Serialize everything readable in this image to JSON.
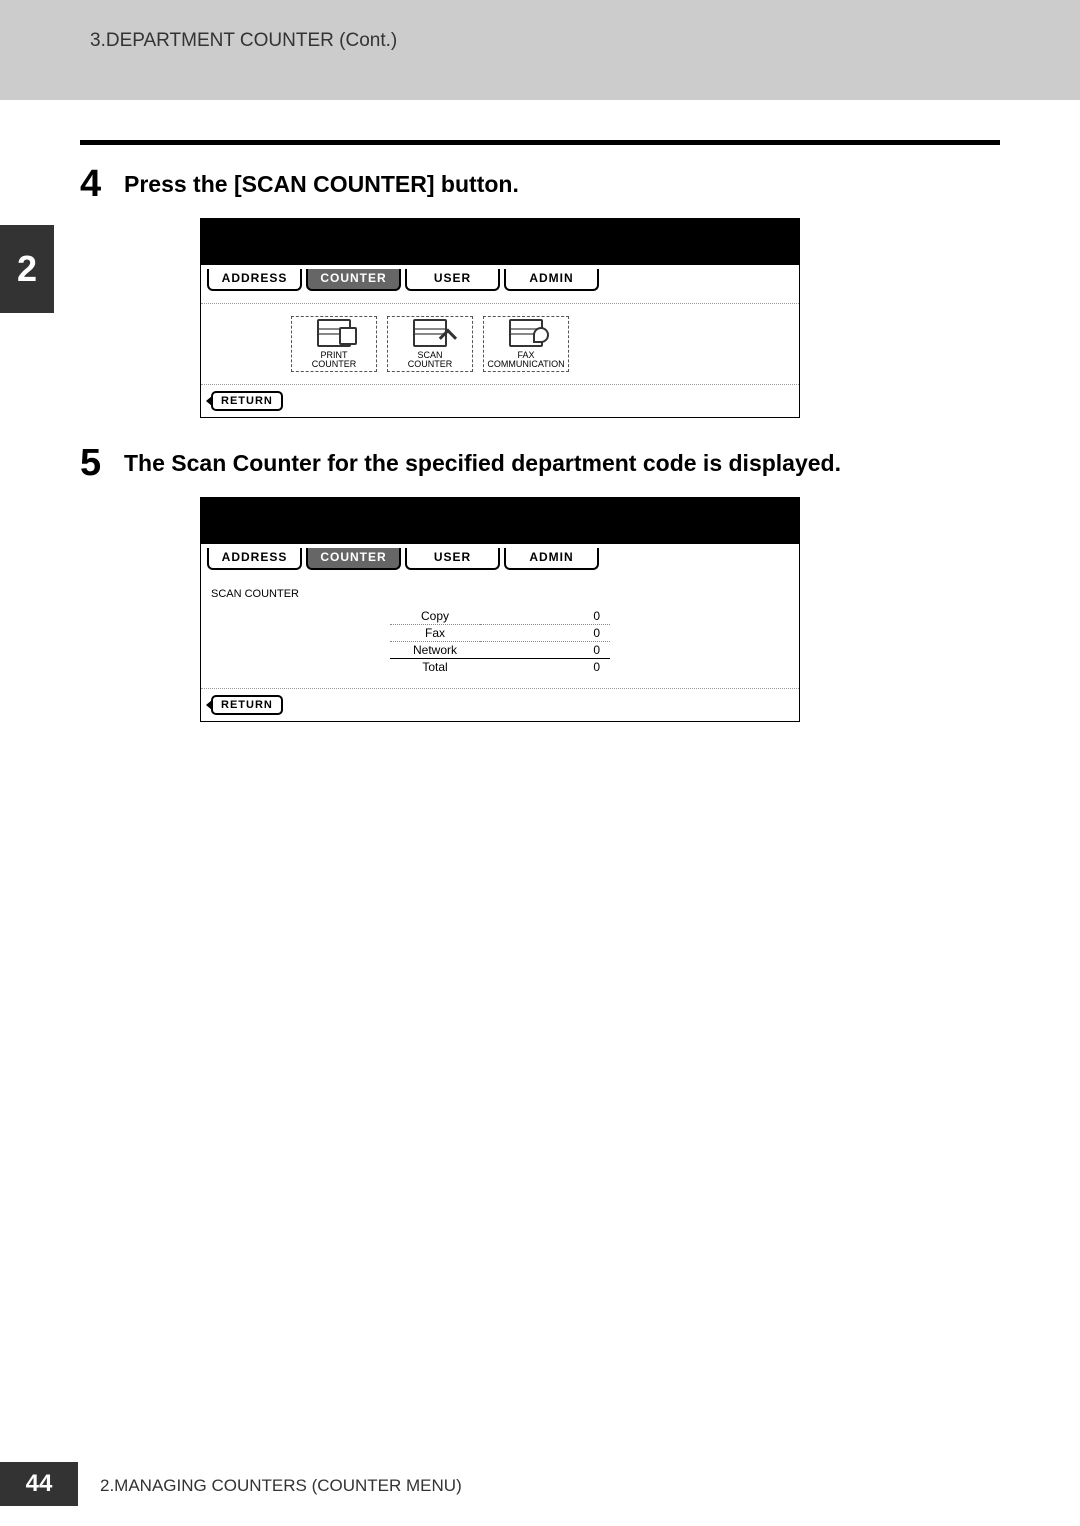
{
  "header": {
    "breadcrumb": "3.DEPARTMENT COUNTER (Cont.)"
  },
  "chapter": {
    "number": "2"
  },
  "steps": [
    {
      "number": "4",
      "text": "Press the [SCAN COUNTER] button."
    },
    {
      "number": "5",
      "text": "The Scan Counter for the specified department code is displayed."
    }
  ],
  "lcd": {
    "tabs": {
      "address": "ADDRESS",
      "counter": "COUNTER",
      "user": "USER",
      "admin": "ADMIN"
    },
    "counter_buttons": {
      "print": "PRINT\nCOUNTER",
      "scan": "SCAN\nCOUNTER",
      "fax": "FAX\nCOMMUNICATION"
    },
    "return_label": "RETURN",
    "scan_counter_title": "SCAN COUNTER",
    "scan_rows": {
      "copy_label": "Copy",
      "copy_value": "0",
      "fax_label": "Fax",
      "fax_value": "0",
      "network_label": "Network",
      "network_value": "0",
      "total_label": "Total",
      "total_value": "0"
    }
  },
  "footer": {
    "page_number": "44",
    "text": "2.MANAGING COUNTERS (COUNTER MENU)"
  },
  "colors": {
    "header_bg": "#cccccc",
    "tab_bg": "#333333",
    "text": "#000000"
  }
}
